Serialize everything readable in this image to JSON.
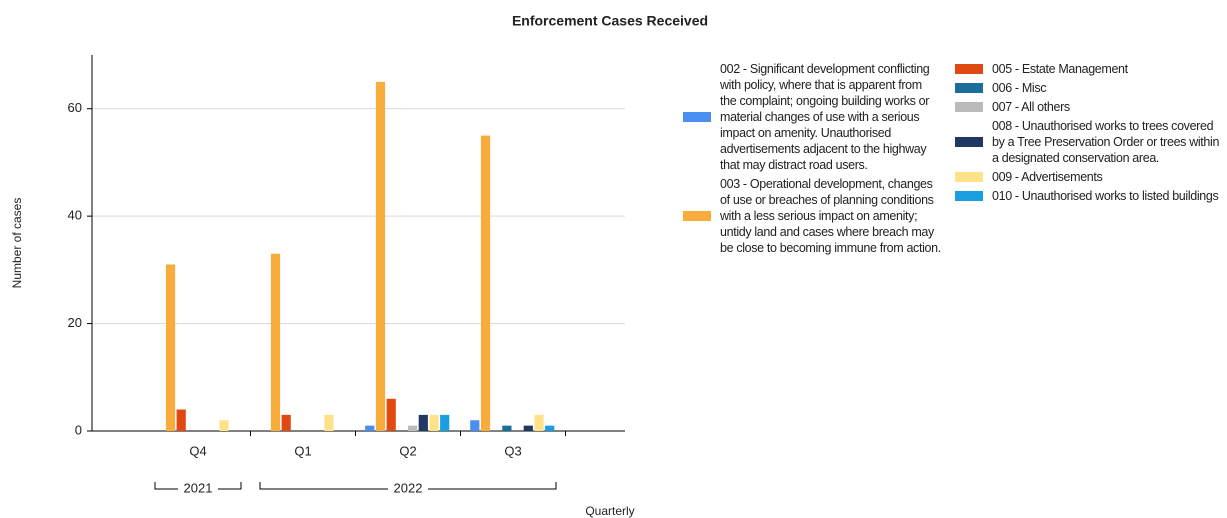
{
  "chart_data": {
    "type": "bar",
    "title": "Enforcement Cases Received",
    "x_label": "Quarterly",
    "y_label": "Number of cases",
    "categories": [
      "Q4",
      "Q1",
      "Q2",
      "Q3"
    ],
    "x_groups": [
      "2021",
      "2022"
    ],
    "ylim": [
      0,
      70
    ],
    "yticks": [
      0,
      20,
      40,
      60
    ],
    "grid": true,
    "series": [
      {
        "name": "002 - Significant development conflicting with policy, where that is apparent from the complaint; ongoing building works or material changes of use with a serious impact on amenity. Unauthorised advertisements adjacent to the highway that may distract road users.",
        "color": "#4a8ff0",
        "values": [
          0,
          0,
          1,
          2
        ]
      },
      {
        "name": "003 - Operational development, changes of use or breaches of planning conditions with a less serious impact on amenity; untidy land and cases where breach may be close to becoming immune from action.",
        "color": "#f7ac3b",
        "values": [
          31,
          33,
          65,
          55
        ]
      },
      {
        "name": "005 - Estate Management",
        "color": "#e04a12",
        "values": [
          4,
          3,
          6,
          0
        ]
      },
      {
        "name": "006 - Misc",
        "color": "#1a6e99",
        "values": [
          0,
          0,
          0,
          1
        ]
      },
      {
        "name": "007 - All others",
        "color": "#bbbbbb",
        "values": [
          0,
          0,
          1,
          0
        ]
      },
      {
        "name": "008 - Unauthorised works to trees covered by a Tree Preservation Order or trees within a designated conservation area.",
        "color": "#1f3864",
        "values": [
          0,
          0,
          3,
          1
        ]
      },
      {
        "name": "009 - Advertisements",
        "color": "#fde28a",
        "values": [
          2,
          3,
          3,
          3
        ]
      },
      {
        "name": "010 - Unauthorised works to listed buildings",
        "color": "#1a9ee0",
        "values": [
          0,
          0,
          3,
          1
        ]
      }
    ]
  }
}
